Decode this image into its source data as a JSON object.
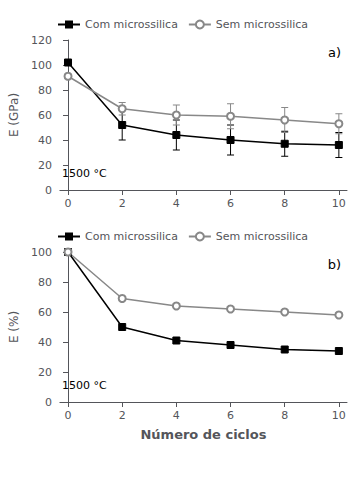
{
  "chart_data": [
    {
      "type": "line",
      "x": [
        0,
        2,
        4,
        6,
        8,
        10
      ],
      "series": [
        {
          "name": "Com microssilica",
          "color": "#000000",
          "marker": "square",
          "values": [
            102,
            52,
            44,
            40,
            37,
            36
          ],
          "yerr": [
            0,
            12,
            12,
            12,
            10,
            10
          ]
        },
        {
          "name": "Sem microssilica",
          "color": "#888888",
          "marker": "open_circle",
          "values": [
            91,
            65,
            60,
            59,
            56,
            53
          ],
          "yerr": [
            0,
            5,
            8,
            10,
            10,
            8
          ]
        }
      ],
      "ylabel": "E (GPa)",
      "xlim": [
        -0.3,
        10.3
      ],
      "xticks": [
        0,
        2,
        4,
        6,
        8,
        10
      ],
      "ylim": [
        0,
        120
      ],
      "yticks": [
        0,
        20,
        40,
        60,
        80,
        100,
        120
      ],
      "annotations": [
        "a)",
        "1500 °C"
      ],
      "legend": "upper left",
      "grid": false
    },
    {
      "type": "line",
      "x": [
        0,
        2,
        4,
        6,
        8,
        10
      ],
      "series": [
        {
          "name": "Com microssilica",
          "color": "#000000",
          "marker": "square",
          "values": [
            100,
            50,
            41,
            38,
            35,
            34
          ]
        },
        {
          "name": "Sem microssilica",
          "color": "#888888",
          "marker": "open_circle",
          "values": [
            100,
            69,
            64,
            62,
            60,
            58
          ]
        }
      ],
      "ylabel": "E (%)",
      "xlabel": "Número de ciclos",
      "xlim": [
        -0.3,
        10.3
      ],
      "xticks": [
        0,
        2,
        4,
        6,
        8,
        10
      ],
      "ylim": [
        0,
        100
      ],
      "yticks": [
        0,
        20,
        40,
        60,
        80,
        100
      ],
      "annotations": [
        "b)",
        "1500 °C"
      ],
      "legend": "upper left",
      "grid": false
    }
  ]
}
